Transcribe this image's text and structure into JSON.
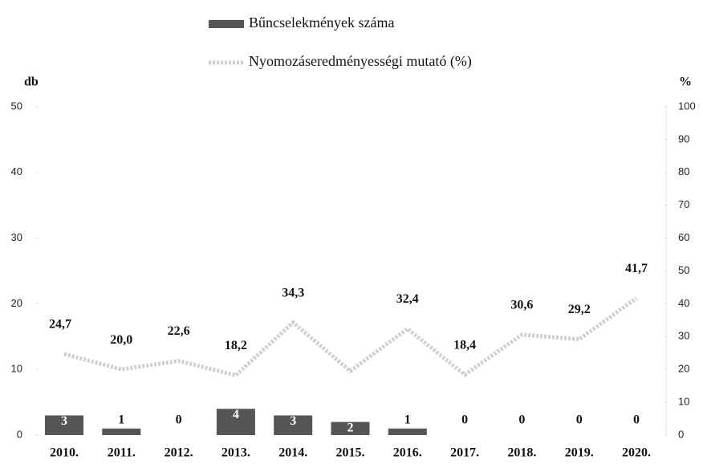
{
  "chart_data": {
    "type": "bar_line",
    "categories": [
      "2010.",
      "2011.",
      "2012.",
      "2013.",
      "2014.",
      "2015.",
      "2016.",
      "2017.",
      "2018.",
      "2019.",
      "2020."
    ],
    "ylabel": "db",
    "y2label": "%",
    "ylim": [
      0,
      50
    ],
    "yticks": [
      0,
      10,
      20,
      30,
      40,
      50
    ],
    "y2lim": [
      0,
      100
    ],
    "y2ticks": [
      0,
      10,
      20,
      30,
      40,
      50,
      60,
      70,
      80,
      90,
      100
    ],
    "series": [
      {
        "name": "Bűncselekmények száma",
        "type": "bar",
        "color": "#555555",
        "values": [
          3,
          1,
          0,
          4,
          3,
          2,
          1,
          0,
          0,
          0,
          0
        ]
      },
      {
        "name": "Nyomozáseredményességi mutató (%)",
        "type": "line",
        "axis": "y2",
        "color": "#cfcfcf",
        "values": [
          24.7,
          20.0,
          22.6,
          18.2,
          34.3,
          19.5,
          32.4,
          18.4,
          30.6,
          29.2,
          41.7
        ],
        "value_labels": [
          "24,7",
          "20,0",
          "22,6",
          "18,2",
          "34,3",
          null,
          "32,4",
          "18,4",
          "30,6",
          "29,2",
          "41,7"
        ]
      }
    ]
  }
}
